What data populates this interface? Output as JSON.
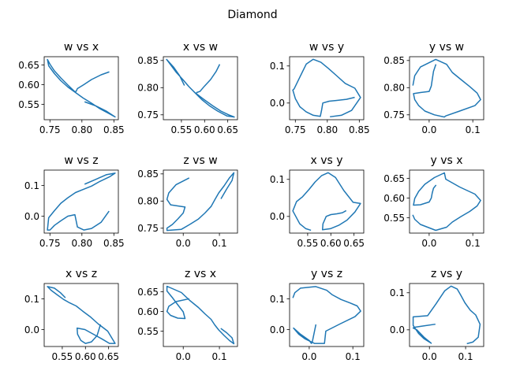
{
  "chart_data": {
    "type": "line",
    "title": "Diamond",
    "series": {
      "w": [
        0.805,
        0.822,
        0.838,
        0.852,
        0.843,
        0.828,
        0.815,
        0.802,
        0.79,
        0.778,
        0.767,
        0.757,
        0.748,
        0.746,
        0.75,
        0.757,
        0.767,
        0.778,
        0.789,
        0.791,
        0.793,
        0.803,
        0.815,
        0.83,
        0.842
      ],
      "x": [
        0.556,
        0.546,
        0.533,
        0.518,
        0.526,
        0.539,
        0.553,
        0.566,
        0.58,
        0.594,
        0.61,
        0.628,
        0.648,
        0.664,
        0.652,
        0.635,
        0.617,
        0.599,
        0.582,
        0.583,
        0.59,
        0.6,
        0.613,
        0.625,
        0.632
      ],
      "y": [
        -0.037,
        -0.033,
        -0.02,
        0.015,
        0.04,
        0.053,
        0.073,
        0.093,
        0.11,
        0.118,
        0.105,
        0.07,
        0.038,
        0.035,
        0.012,
        -0.01,
        -0.024,
        -0.033,
        -0.036,
        -0.02,
        0.0,
        0.005,
        0.007,
        0.01,
        0.015
      ],
      "z": [
        0.105,
        0.12,
        0.135,
        0.14,
        0.128,
        0.113,
        0.098,
        0.087,
        0.077,
        0.06,
        0.042,
        0.018,
        -0.005,
        -0.045,
        -0.045,
        -0.03,
        -0.015,
        0.0,
        0.005,
        -0.015,
        -0.035,
        -0.045,
        -0.04,
        -0.02,
        0.015
      ]
    },
    "subplots": [
      {
        "title": "w vs x",
        "x": "w",
        "y": "x",
        "xlim": [
          0.741,
          0.857
        ],
        "ylim": [
          0.511,
          0.671
        ],
        "xticks": [
          0.75,
          0.8,
          0.85
        ],
        "xticklabels": [
          "0.75",
          "0.80",
          "0.85"
        ],
        "yticks": [
          0.55,
          0.6,
          0.65
        ],
        "yticklabels": [
          "0.55",
          "0.60",
          "0.65"
        ]
      },
      {
        "title": "x vs w",
        "x": "x",
        "y": "w",
        "xlim": [
          0.511,
          0.671
        ],
        "ylim": [
          0.741,
          0.857
        ],
        "xticks": [
          0.55,
          0.6,
          0.65
        ],
        "xticklabels": [
          "0.55",
          "0.60",
          "0.65"
        ],
        "yticks": [
          0.75,
          0.8,
          0.85
        ],
        "yticklabels": [
          "0.75",
          "0.80",
          "0.85"
        ]
      },
      {
        "title": "w vs y",
        "x": "w",
        "y": "y",
        "xlim": [
          0.741,
          0.857
        ],
        "ylim": [
          -0.045,
          0.125
        ],
        "xticks": [
          0.75,
          0.8,
          0.85
        ],
        "xticklabels": [
          "0.75",
          "0.80",
          "0.85"
        ],
        "yticks": [
          0.0,
          0.1
        ],
        "yticklabels": [
          "0.0",
          "0.1"
        ]
      },
      {
        "title": "y vs w",
        "x": "y",
        "y": "w",
        "xlim": [
          -0.045,
          0.125
        ],
        "ylim": [
          0.741,
          0.857
        ],
        "xticks": [
          0.0,
          0.1
        ],
        "xticklabels": [
          "0.0",
          "0.1"
        ],
        "yticks": [
          0.75,
          0.8,
          0.85
        ],
        "yticklabels": [
          "0.75",
          "0.80",
          "0.85"
        ]
      },
      {
        "title": "w vs z",
        "x": "w",
        "y": "z",
        "xlim": [
          0.741,
          0.857
        ],
        "ylim": [
          -0.055,
          0.15
        ],
        "xticks": [
          0.75,
          0.8,
          0.85
        ],
        "xticklabels": [
          "0.75",
          "0.80",
          "0.85"
        ],
        "yticks": [
          0.0,
          0.1
        ],
        "yticklabels": [
          "0.0",
          "0.1"
        ]
      },
      {
        "title": "z vs w",
        "x": "z",
        "y": "w",
        "xlim": [
          -0.055,
          0.15
        ],
        "ylim": [
          0.741,
          0.857
        ],
        "xticks": [
          0.0,
          0.1
        ],
        "xticklabels": [
          "0.0",
          "0.1"
        ],
        "yticks": [
          0.75,
          0.8,
          0.85
        ],
        "yticklabels": [
          "0.75",
          "0.80",
          "0.85"
        ]
      },
      {
        "title": "x vs y",
        "x": "x",
        "y": "y",
        "xlim": [
          0.511,
          0.671
        ],
        "ylim": [
          -0.045,
          0.125
        ],
        "xticks": [
          0.55,
          0.6,
          0.65
        ],
        "xticklabels": [
          "0.55",
          "0.60",
          "0.65"
        ],
        "yticks": [
          0.0,
          0.1
        ],
        "yticklabels": [
          "0.0",
          "0.1"
        ]
      },
      {
        "title": "y vs x",
        "x": "y",
        "y": "x",
        "xlim": [
          -0.045,
          0.125
        ],
        "ylim": [
          0.511,
          0.671
        ],
        "xticks": [
          0.0,
          0.1
        ],
        "xticklabels": [
          "0.0",
          "0.1"
        ],
        "yticks": [
          0.55,
          0.6,
          0.65
        ],
        "yticklabels": [
          "0.55",
          "0.60",
          "0.65"
        ]
      },
      {
        "title": "x vs z",
        "x": "x",
        "y": "z",
        "xlim": [
          0.511,
          0.671
        ],
        "ylim": [
          -0.055,
          0.15
        ],
        "xticks": [
          0.55,
          0.6,
          0.65
        ],
        "xticklabels": [
          "0.55",
          "0.60",
          "0.65"
        ],
        "yticks": [
          0.0,
          0.1
        ],
        "yticklabels": [
          "0.0",
          "0.1"
        ]
      },
      {
        "title": "z vs x",
        "x": "z",
        "y": "x",
        "xlim": [
          -0.055,
          0.15
        ],
        "ylim": [
          0.511,
          0.671
        ],
        "xticks": [
          0.0,
          0.1
        ],
        "xticklabels": [
          "0.0",
          "0.1"
        ],
        "yticks": [
          0.55,
          0.6,
          0.65
        ],
        "yticklabels": [
          "0.55",
          "0.60",
          "0.65"
        ]
      },
      {
        "title": "y vs z",
        "x": "y",
        "y": "z",
        "xlim": [
          -0.045,
          0.125
        ],
        "ylim": [
          -0.055,
          0.15
        ],
        "xticks": [
          0.0,
          0.1
        ],
        "xticklabels": [
          "0.0",
          "0.1"
        ],
        "yticks": [
          0.0,
          0.1
        ],
        "yticklabels": [
          "0.0",
          "0.1"
        ]
      },
      {
        "title": "z vs y",
        "x": "z",
        "y": "y",
        "xlim": [
          -0.055,
          0.15
        ],
        "ylim": [
          -0.045,
          0.125
        ],
        "xticks": [
          0.0,
          0.1
        ],
        "xticklabels": [
          "0.0",
          "0.1"
        ],
        "yticks": [
          0.0,
          0.1
        ],
        "yticklabels": [
          "0.0",
          "0.1"
        ]
      }
    ],
    "line_color": "#1f77b4"
  }
}
